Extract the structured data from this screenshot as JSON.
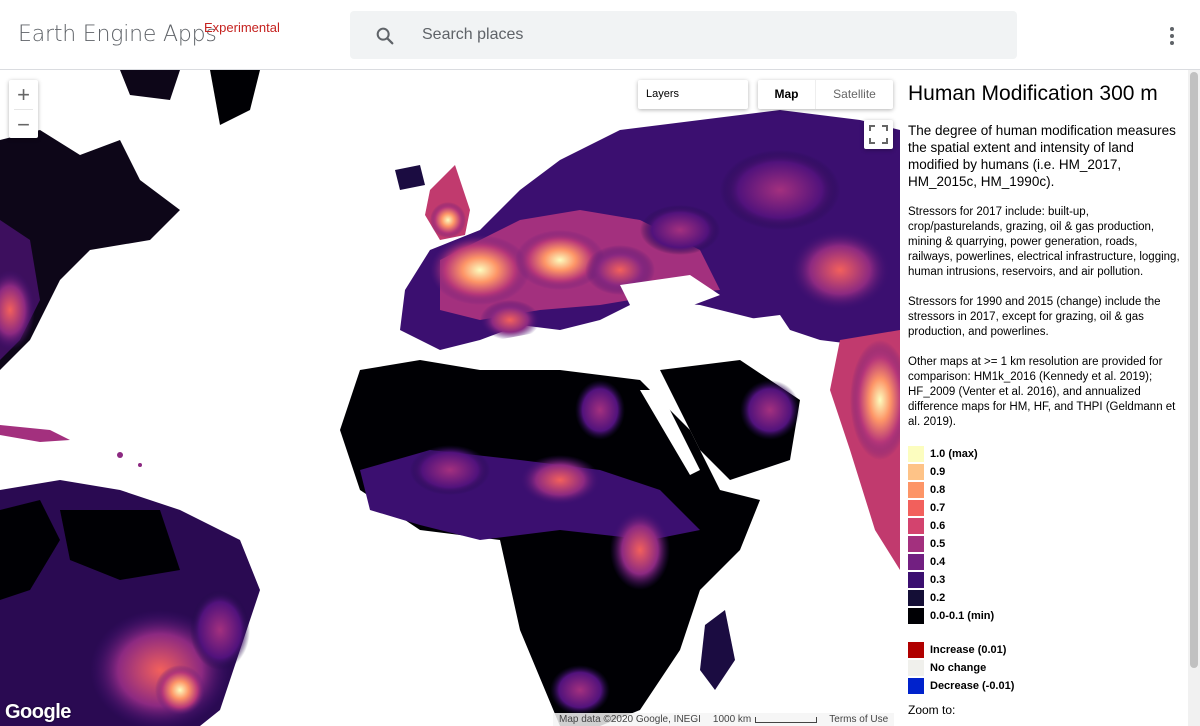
{
  "header": {
    "app_title": "Earth Engine Apps",
    "badge": "Experimental",
    "search_placeholder": "Search places",
    "menu_icon": "more-vert-icon",
    "search_icon": "search-icon"
  },
  "map": {
    "zoom_in": "+",
    "zoom_out": "−",
    "layers_label": "Layers",
    "map_type": {
      "map": "Map",
      "satellite": "Satellite",
      "selected": "Map"
    },
    "logo": "Google",
    "attribution": {
      "data": "Map data ©2020 Google, INEGI",
      "scale": "1000 km",
      "terms": "Terms of Use"
    },
    "colors": {
      "low": "#000004",
      "mid": "#7b2382",
      "high": "#fcfdbf",
      "water": "#ffffff"
    }
  },
  "panel": {
    "title": "Human Modification 300 m",
    "description": "The degree of human modification measures the spatial extent and intensity of land modified by humans (i.e. HM_2017, HM_2015c, HM_1990c).",
    "stressors_2017": "Stressors for 2017 include: built-up, crop/pasturelands, grazing, oil & gas production, mining & quarrying, power generation, roads, railways, powerlines, electrical infrastructure, logging, human intrusions, reservoirs, and air pollution.",
    "stressors_change": "Stressors for 1990 and 2015 (change) include the stressors in 2017, except for grazing, oil & gas production, and powerlines.",
    "other_maps": "Other maps at >= 1 km resolution are provided for comparison: HM1k_2016 (Kennedy et al. 2019); HF_2009 (Venter et al. 2016), and annualized difference maps for HM, HF, and THPI (Geldmann et al. 2019).",
    "legend": [
      {
        "label": "1.0 (max)",
        "color": "#fcfdbf"
      },
      {
        "label": "0.9",
        "color": "#fec387"
      },
      {
        "label": "0.8",
        "color": "#fd9567"
      },
      {
        "label": "0.7",
        "color": "#f2605c"
      },
      {
        "label": "0.6",
        "color": "#d3436e"
      },
      {
        "label": "0.5",
        "color": "#a3307e"
      },
      {
        "label": "0.4",
        "color": "#721f81"
      },
      {
        "label": "0.3",
        "color": "#3b0f70"
      },
      {
        "label": "0.2",
        "color": "#140e36"
      },
      {
        "label": "0.0-0.1 (min)",
        "color": "#000004"
      }
    ],
    "change_legend": [
      {
        "label": "Increase (0.01)",
        "color": "#b00000"
      },
      {
        "label": "No change",
        "color": "#f0f0ec"
      },
      {
        "label": "Decrease (-0.01)",
        "color": "#0022cc"
      }
    ],
    "zoom_to": "Zoom to:"
  }
}
